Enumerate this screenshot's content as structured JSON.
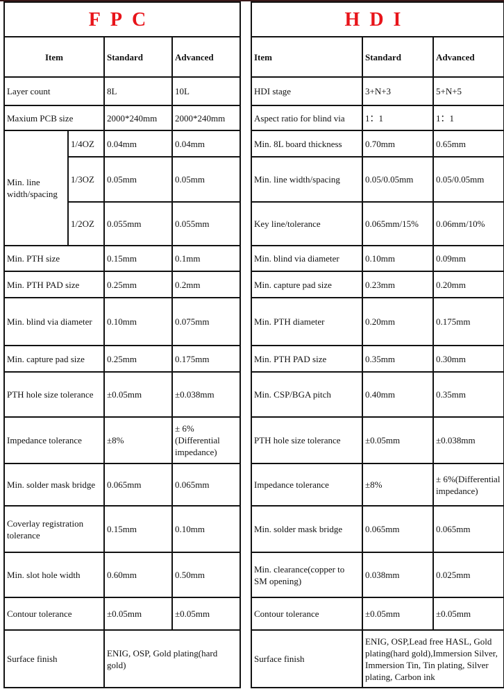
{
  "fpc": {
    "title": "FPC",
    "headers": [
      "Item",
      "Standard",
      "Advanced"
    ],
    "rows": [
      {
        "item": "Layer count",
        "standard": "8L",
        "advanced": "10L"
      },
      {
        "item": "Maxium PCB size",
        "standard": "2000*240mm",
        "advanced": "2000*240mm"
      },
      {
        "item": "Min. line width/spacing",
        "sub": "1/4OZ",
        "standard": "0.04mm",
        "advanced": "0.04mm"
      },
      {
        "sub": "1/3OZ",
        "standard": "0.05mm",
        "advanced": "0.05mm"
      },
      {
        "sub": "1/2OZ",
        "standard": "0.055mm",
        "advanced": "0.055mm"
      },
      {
        "item": "Min. PTH size",
        "standard": "0.15mm",
        "advanced": "0.1mm"
      },
      {
        "item": "Min. PTH PAD size",
        "standard": "0.25mm",
        "advanced": "0.2mm"
      },
      {
        "item": "Min. blind via diameter",
        "standard": "0.10mm",
        "advanced": "0.075mm"
      },
      {
        "item": "Min. capture pad size",
        "standard": "0.25mm",
        "advanced": "0.175mm"
      },
      {
        "item": "PTH hole size tolerance",
        "standard": "±0.05mm",
        "advanced": "±0.038mm"
      },
      {
        "item": "Impedance tolerance",
        "standard": "±8%",
        "advanced": "± 6%(Differential impedance)"
      },
      {
        "item": "Min. solder mask bridge",
        "standard": "0.065mm",
        "advanced": "0.065mm"
      },
      {
        "item": "Coverlay registration tolerance",
        "standard": "0.15mm",
        "advanced": "0.10mm"
      },
      {
        "item": "Min. slot hole width",
        "standard": "0.60mm",
        "advanced": "0.50mm"
      },
      {
        "item": "Contour tolerance",
        "standard": "±0.05mm",
        "advanced": "±0.05mm"
      },
      {
        "item": "Surface finish",
        "merged": "ENIG, OSP, Gold plating(hard gold)"
      }
    ]
  },
  "hdi": {
    "title": "HDI",
    "headers": [
      "Item",
      "Standard",
      "Advanced"
    ],
    "rows": [
      {
        "item": "HDI stage",
        "standard": "3+N+3",
        "advanced": "5+N+5"
      },
      {
        "item": "Aspect ratio for blind via",
        "standard": "1：1",
        "advanced": "1：1"
      },
      {
        "item": "Min. 8L board thickness",
        "standard": "0.70mm",
        "advanced": "0.65mm"
      },
      {
        "item": "Min. line width/spacing",
        "standard": "0.05/0.05mm",
        "advanced": "0.05/0.05mm"
      },
      {
        "item": "Key line/tolerance",
        "standard": "0.065mm/15%",
        "advanced": "0.06mm/10%"
      },
      {
        "item": "Min. blind via diameter",
        "standard": "0.10mm",
        "advanced": "0.09mm"
      },
      {
        "item": "Min. capture pad size",
        "standard": "0.23mm",
        "advanced": "0.20mm"
      },
      {
        "item": "Min. PTH diameter",
        "standard": "0.20mm",
        "advanced": "0.175mm"
      },
      {
        "item": "Min. PTH PAD size",
        "standard": "0.35mm",
        "advanced": "0.30mm"
      },
      {
        "item": "Min. CSP/BGA pitch",
        "standard": "0.40mm",
        "advanced": "0.35mm"
      },
      {
        "item": "PTH hole size tolerance",
        "standard": "±0.05mm",
        "advanced": "±0.038mm"
      },
      {
        "item": "Impedance tolerance",
        "standard": "±8%",
        "advanced": "± 6%(Differential impedance)"
      },
      {
        "item": "Min. solder mask bridge",
        "standard": "0.065mm",
        "advanced": "0.065mm"
      },
      {
        "item": "Min. clearance(copper to SM opening)",
        "standard": "0.038mm",
        "advanced": "0.025mm"
      },
      {
        "item": "Contour tolerance",
        "standard": "±0.05mm",
        "advanced": "±0.05mm"
      },
      {
        "item": "Surface finish",
        "standard": "ENIG, OSP,Lead free HASL, Gold plating(hard gold),Immersion Silver, Immersion Tin, Tin plating, Silver plating, Carbon ink",
        "advanced": ""
      }
    ]
  }
}
